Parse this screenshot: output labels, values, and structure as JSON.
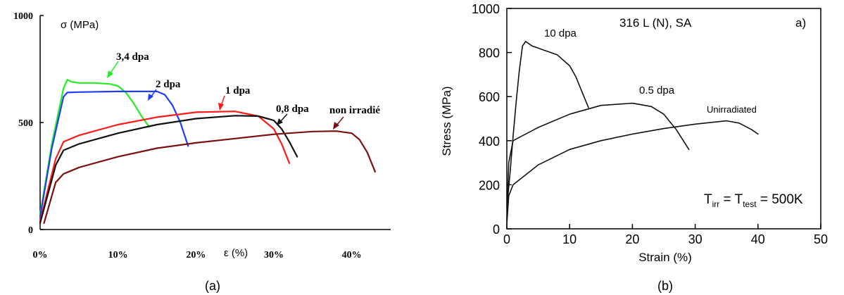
{
  "captions": [
    "(a)",
    "(b)"
  ],
  "chart_data": [
    {
      "type": "line",
      "ylabel": "σ (MPa)",
      "xlabel": "ε (%)",
      "xlim": [
        0,
        45
      ],
      "ylim": [
        0,
        1000
      ],
      "x_ticks": [
        0,
        10,
        20,
        30,
        40
      ],
      "x_tick_labels": [
        "0%",
        "10%",
        "20%",
        "30%",
        "40%"
      ],
      "y_ticks": [
        0,
        500,
        1000
      ],
      "y_tick_labels": [
        "0",
        "500",
        "1000"
      ],
      "grid": false,
      "series": [
        {
          "name": "3,4 dpa",
          "color": "#22ee22",
          "x": [
            0,
            1.5,
            3,
            3.5,
            4,
            5,
            7,
            9,
            10,
            11,
            12,
            13,
            14
          ],
          "y": [
            70,
            400,
            660,
            700,
            690,
            685,
            685,
            680,
            670,
            640,
            590,
            530,
            480
          ]
        },
        {
          "name": "2 dpa",
          "color": "#1f3cff",
          "x": [
            0,
            1.5,
            3,
            3.5,
            5,
            10,
            15,
            16,
            17,
            18,
            19
          ],
          "y": [
            60,
            380,
            620,
            640,
            642,
            645,
            645,
            630,
            580,
            500,
            390
          ]
        },
        {
          "name": "1 dpa",
          "color": "#ff1a1a",
          "x": [
            0,
            2,
            3,
            5,
            10,
            15,
            20,
            25,
            28,
            30,
            31,
            32
          ],
          "y": [
            40,
            330,
            410,
            440,
            490,
            525,
            548,
            552,
            530,
            470,
            400,
            310
          ]
        },
        {
          "name": "0,8 dpa",
          "color": "#111111",
          "x": [
            0,
            2,
            3,
            5,
            10,
            15,
            20,
            25,
            28,
            30,
            31,
            32,
            33
          ],
          "y": [
            30,
            300,
            370,
            400,
            450,
            490,
            518,
            532,
            530,
            510,
            470,
            410,
            340
          ]
        },
        {
          "name": "non irradié",
          "color": "#7a1010",
          "x": [
            0.5,
            2,
            3,
            5,
            10,
            15,
            20,
            25,
            30,
            35,
            38,
            40,
            41,
            42,
            43
          ],
          "y": [
            30,
            220,
            260,
            290,
            340,
            380,
            405,
            425,
            445,
            458,
            460,
            450,
            420,
            360,
            270
          ]
        }
      ],
      "annotations": [
        "3,4 dpa",
        "2 dpa",
        "1 dpa",
        "0,8 dpa",
        "non irradié"
      ]
    },
    {
      "type": "line",
      "title": "316 L (N), SA",
      "panel_label": "a)",
      "xlabel": "Strain (%)",
      "ylabel": "Stress (MPa)",
      "xlim": [
        0,
        50
      ],
      "ylim": [
        0,
        1000
      ],
      "x_ticks": [
        0,
        10,
        20,
        30,
        40,
        50
      ],
      "x_tick_labels": [
        "0",
        "10",
        "20",
        "30",
        "40",
        "50"
      ],
      "y_ticks": [
        0,
        200,
        400,
        600,
        800,
        1000
      ],
      "y_tick_labels": [
        "0",
        "200",
        "400",
        "600",
        "800",
        "1000"
      ],
      "grid": false,
      "condition": {
        "t1": "T",
        "sub1": "irr",
        "mid": " = T",
        "sub2": "test",
        "tail": " = 500K"
      },
      "series": [
        {
          "name": "10 dpa",
          "color": "#111111",
          "x": [
            0,
            0.5,
            1,
            1.5,
            2,
            2.5,
            3,
            4,
            6,
            8,
            10,
            11,
            12,
            13
          ],
          "y": [
            100,
            250,
            420,
            580,
            720,
            830,
            850,
            830,
            810,
            790,
            740,
            690,
            620,
            550
          ]
        },
        {
          "name": "0.5 dpa",
          "color": "#111111",
          "x": [
            0,
            0.3,
            1,
            5,
            10,
            15,
            20,
            23,
            25,
            27,
            29
          ],
          "y": [
            40,
            300,
            400,
            460,
            520,
            560,
            570,
            555,
            520,
            450,
            360
          ]
        },
        {
          "name": "Unirradiated",
          "color": "#111111",
          "x": [
            0,
            0.3,
            1,
            5,
            10,
            15,
            20,
            25,
            30,
            35,
            37,
            39,
            40
          ],
          "y": [
            20,
            150,
            200,
            290,
            360,
            400,
            430,
            455,
            475,
            490,
            480,
            450,
            430
          ]
        }
      ],
      "annotations": [
        "10 dpa",
        "0.5 dpa",
        "Unirradiated"
      ]
    }
  ]
}
